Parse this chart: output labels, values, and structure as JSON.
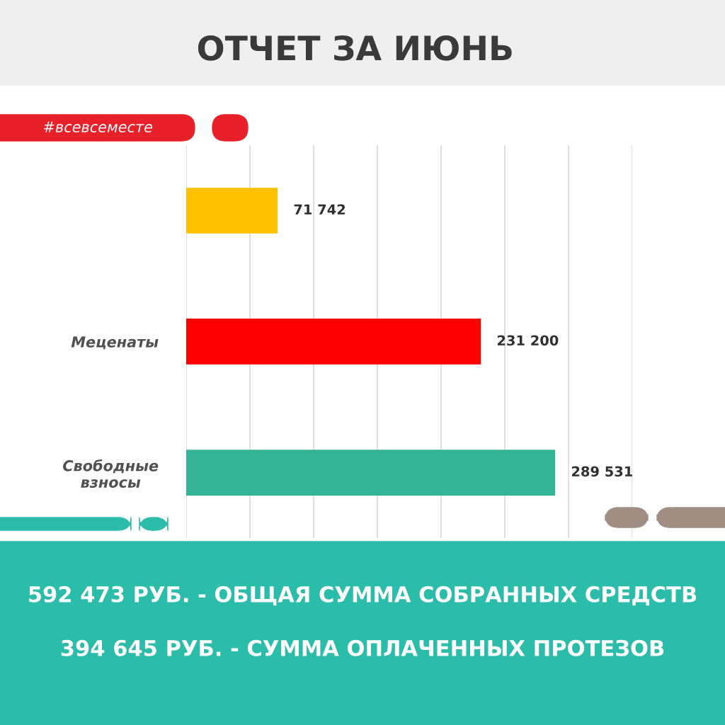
{
  "chart_data": {
    "type": "bar",
    "orientation": "horizontal",
    "title": "ОТЧЕТ ЗА ИЮНЬ",
    "categories": [
      null,
      "Меценаты",
      "Свободные\nвзносы"
    ],
    "values": [
      71742,
      231200,
      289531
    ],
    "colors": [
      "#ffc000",
      "#ff0000",
      "#34b396"
    ],
    "value_labels": [
      "71 742",
      "231 200",
      "289 531"
    ],
    "xlim": [
      0,
      350000
    ],
    "xticks": [
      {
        "value": 0,
        "label": null
      },
      {
        "value": 50000,
        "label": null
      },
      {
        "value": 100000,
        "label": null
      },
      {
        "value": 150000,
        "label": null
      },
      {
        "value": 200000,
        "label": null
      },
      {
        "value": 250000,
        "label": null
      },
      {
        "value": 300000,
        "label": null
      },
      {
        "value": 350000,
        "label": null
      }
    ],
    "grid": "x",
    "tick_labels": "y",
    "annotations": [
      "#всевсеместе",
      "592 473 РУБ. - ОБЩАЯ СУММА СОБРАННЫХ СРЕДСТВ",
      "394 645 РУБ. - СУММА ОПЛАЧЕННЫХ ПРОТЕЗОВ"
    ]
  }
}
